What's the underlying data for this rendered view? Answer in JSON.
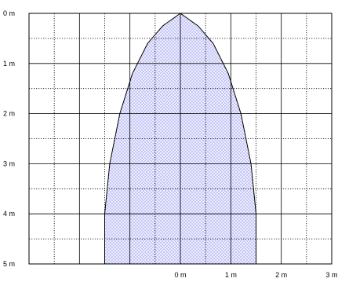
{
  "chart_data": {
    "type": "area",
    "title": "",
    "xlabel": "",
    "ylabel": "",
    "x_tick_labels": [
      "0 m",
      "1 m",
      "2 m",
      "3 m"
    ],
    "y_tick_labels": [
      "0 m",
      "1 m",
      "2 m",
      "3 m",
      "4 m",
      "5 m"
    ],
    "x_ticks": [
      0,
      1,
      2,
      3
    ],
    "y_ticks": [
      0,
      1,
      2,
      3,
      4,
      5
    ],
    "xlim": [
      -3,
      3
    ],
    "ylim": [
      0,
      5
    ],
    "y_inverted": true,
    "grid": {
      "major": "solid",
      "minor": "dotted",
      "x_step": 0.5,
      "y_step": 0.5
    },
    "series": [
      {
        "fill": "dotted",
        "boundary_right": [
          {
            "x": 0.0,
            "y": 0.0
          },
          {
            "x": 0.35,
            "y": 0.25
          },
          {
            "x": 0.65,
            "y": 0.6
          },
          {
            "x": 0.95,
            "y": 1.2
          },
          {
            "x": 1.2,
            "y": 2.0
          },
          {
            "x": 1.4,
            "y": 3.0
          },
          {
            "x": 1.5,
            "y": 4.0
          },
          {
            "x": 1.5,
            "y": 5.0
          }
        ],
        "boundary_left": [
          {
            "x": 0.0,
            "y": 0.0
          },
          {
            "x": -0.35,
            "y": 0.25
          },
          {
            "x": -0.65,
            "y": 0.6
          },
          {
            "x": -0.95,
            "y": 1.2
          },
          {
            "x": -1.2,
            "y": 2.0
          },
          {
            "x": -1.4,
            "y": 3.0
          },
          {
            "x": -1.5,
            "y": 4.0
          },
          {
            "x": -1.5,
            "y": 5.0
          }
        ]
      }
    ],
    "colors": {
      "grid_major": "#000000",
      "grid_minor": "#000000",
      "area_dots": "#3a3ad0",
      "area_fill": "#ececff",
      "boundary": "#000000"
    }
  }
}
